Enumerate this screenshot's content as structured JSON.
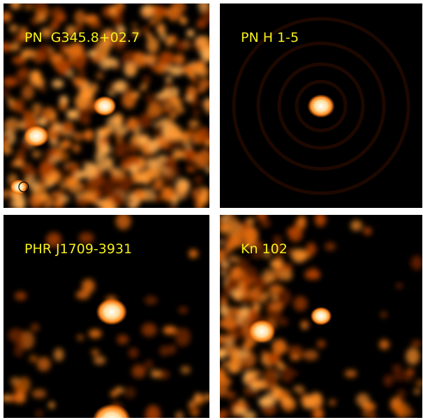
{
  "panels": [
    {
      "label": "PN  G345.8+02.7"
    },
    {
      "label": "PN H 1-5"
    },
    {
      "label": "PHR J1709-3931"
    },
    {
      "label": "Kn 102"
    }
  ]
}
